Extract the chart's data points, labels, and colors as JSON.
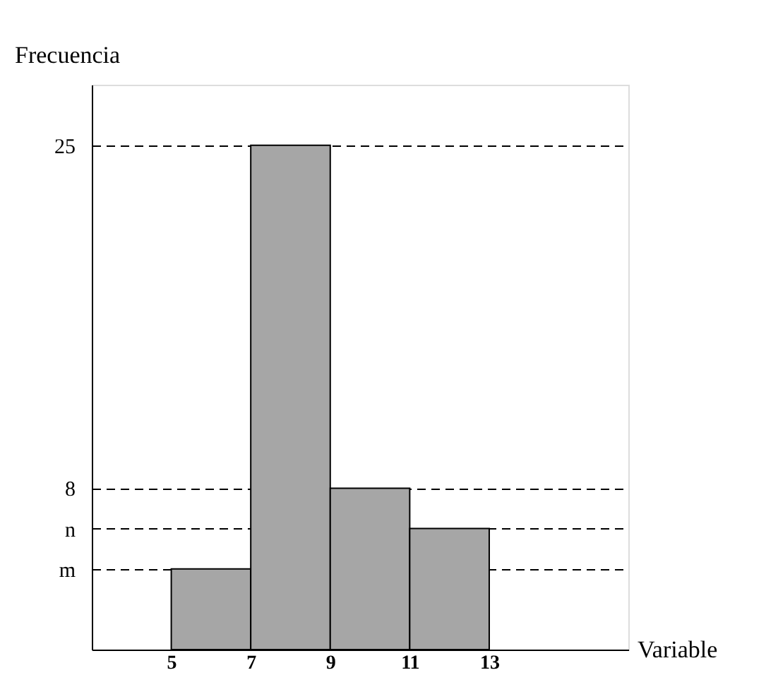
{
  "chart_data": {
    "type": "histogram",
    "xlabel": "Variable",
    "ylabel": "Frecuencia",
    "bins": [
      5,
      7,
      9,
      11,
      13
    ],
    "values": [
      4,
      25,
      8,
      6
    ],
    "color": "#a6a6a6",
    "xlim": [
      3,
      16.5
    ],
    "ylim": [
      0,
      28
    ],
    "xticks": [
      5,
      7,
      9,
      11,
      13
    ],
    "yticks": [
      {
        "value": 4,
        "label": "m"
      },
      {
        "value": 6,
        "label": "n"
      },
      8,
      25
    ],
    "grid": "y",
    "line_style": "dashed"
  }
}
